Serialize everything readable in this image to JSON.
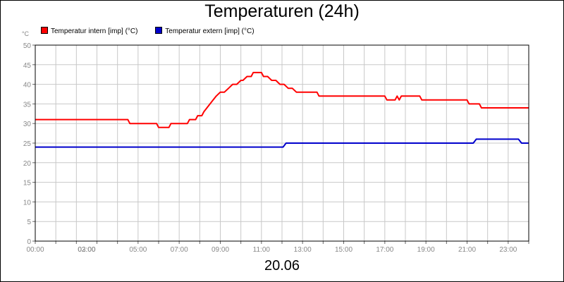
{
  "chart_data": {
    "type": "line",
    "title": "Temperaturen (24h)",
    "xlabel": "20.06",
    "ylabel": "°C",
    "ylim": [
      0,
      50
    ],
    "yticks": [
      0,
      5,
      10,
      15,
      20,
      25,
      30,
      35,
      40,
      45,
      50
    ],
    "xlim": [
      0,
      24
    ],
    "xticks": [
      {
        "x": 0,
        "label": "00:00"
      },
      {
        "x": 2,
        "label": "02:00"
      },
      {
        "x": 3,
        "label": "03:00"
      },
      {
        "x": 5,
        "label": "05:00"
      },
      {
        "x": 7,
        "label": "07:00"
      },
      {
        "x": 9,
        "label": "09:00"
      },
      {
        "x": 11,
        "label": "11:00"
      },
      {
        "x": 13,
        "label": "13:00"
      },
      {
        "x": 15,
        "label": "15:00"
      },
      {
        "x": 17,
        "label": "17:00"
      },
      {
        "x": 19,
        "label": "19:00"
      },
      {
        "x": 21,
        "label": "21:00"
      },
      {
        "x": 23,
        "label": "23:00"
      }
    ],
    "grid": true,
    "legend_position": "top-left",
    "series": [
      {
        "name": "Temperatur intern [imp] (°C)",
        "color": "#ff0000",
        "x": [
          0,
          4.5,
          4.6,
          5.9,
          6.0,
          6.5,
          6.6,
          7.4,
          7.5,
          7.8,
          7.9,
          8.1,
          8.2,
          8.35,
          8.5,
          8.65,
          8.8,
          9.0,
          9.2,
          9.4,
          9.6,
          9.8,
          10.0,
          10.1,
          10.3,
          10.5,
          10.6,
          11.0,
          11.1,
          11.3,
          11.5,
          11.7,
          11.9,
          12.1,
          12.3,
          12.5,
          12.7,
          13.7,
          13.8,
          17.0,
          17.1,
          17.5,
          17.6,
          17.7,
          17.8,
          17.9,
          18.0,
          18.7,
          18.8,
          21.0,
          21.1,
          21.6,
          21.7,
          24.0
        ],
        "y": [
          31,
          31,
          30,
          30,
          29,
          29,
          30,
          30,
          31,
          31,
          32,
          32,
          33,
          34,
          35,
          36,
          37,
          38,
          38,
          39,
          40,
          40,
          41,
          41,
          42,
          42,
          43,
          43,
          42,
          42,
          41,
          41,
          40,
          40,
          39,
          39,
          38,
          38,
          37,
          37,
          36,
          36,
          37,
          36,
          37,
          37,
          37,
          37,
          36,
          36,
          35,
          35,
          34,
          34
        ]
      },
      {
        "name": "Temperatur extern [imp] (°C)",
        "color": "#0000cc",
        "x": [
          0,
          12.05,
          12.2,
          21.3,
          21.45,
          23.5,
          23.65,
          24.0
        ],
        "y": [
          24,
          24,
          25,
          25,
          26,
          26,
          25,
          25
        ]
      }
    ]
  }
}
